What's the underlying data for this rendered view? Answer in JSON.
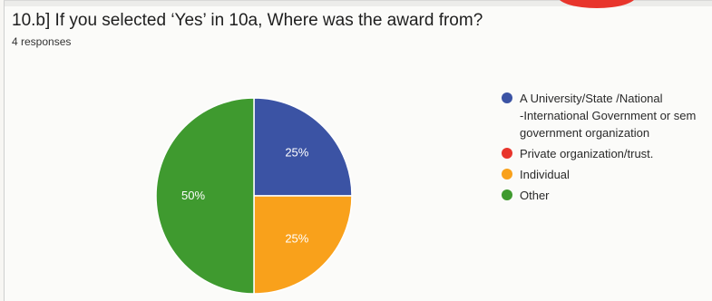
{
  "question": {
    "title": "10.b] If you selected  ‘Yes’ in 10a, Where was the award from?",
    "responses": "4 responses"
  },
  "legend": [
    {
      "label": "A University/State /National\n-International Government or sem\ngovernment organization",
      "color": "#3b53a4"
    },
    {
      "label": "Private organization/trust.",
      "color": "#e8352c"
    },
    {
      "label": "Individual",
      "color": "#f9a11b"
    },
    {
      "label": "Other",
      "color": "#3f9a2f"
    }
  ],
  "chart_data": {
    "type": "pie",
    "slices": [
      {
        "label": "A University/State /National -International Government or sem government organization",
        "value": 25,
        "display": "25%",
        "color": "#3b53a4"
      },
      {
        "label": "Private organization/trust.",
        "value": 0,
        "display": "",
        "color": "#e8352c"
      },
      {
        "label": "Individual",
        "value": 25,
        "display": "25%",
        "color": "#f9a11b"
      },
      {
        "label": "Other",
        "value": 50,
        "display": "50%",
        "color": "#3f9a2f"
      }
    ],
    "legend_position": "right"
  }
}
